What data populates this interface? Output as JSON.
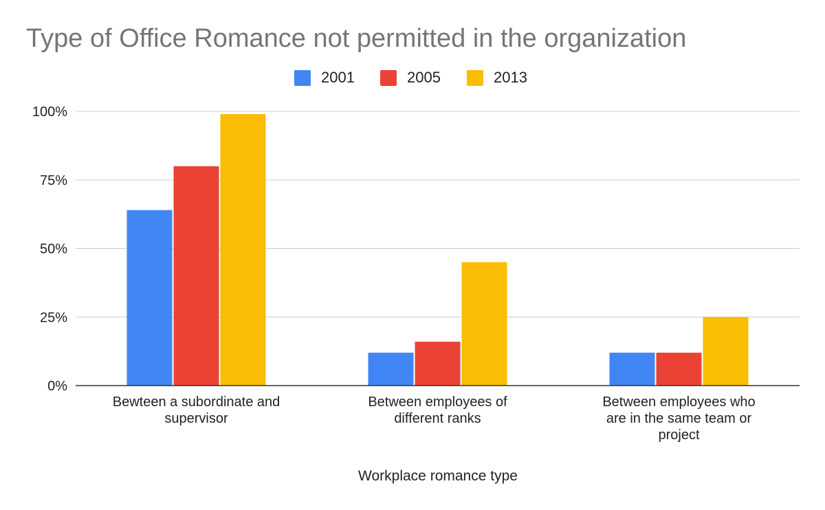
{
  "chart_data": {
    "type": "bar",
    "title": "Type of Office Romance not permitted  in the organization",
    "xlabel": "Workplace romance type",
    "ylabel": "",
    "categories": [
      [
        "Bewteen a subordinate and",
        "supervisor"
      ],
      [
        "Between employees of",
        "different ranks"
      ],
      [
        "Between employees who",
        "are in the same team or",
        "project"
      ]
    ],
    "series": [
      {
        "name": "2001",
        "color": "#4285f4",
        "values": [
          64,
          12,
          12
        ]
      },
      {
        "name": "2005",
        "color": "#ea4335",
        "values": [
          80,
          16,
          12
        ]
      },
      {
        "name": "2013",
        "color": "#fbbc04",
        "values": [
          99,
          45,
          25
        ]
      }
    ],
    "ylim": [
      0,
      100
    ],
    "yticks": [
      0,
      25,
      50,
      75,
      100
    ],
    "ytick_labels": [
      "0%",
      "25%",
      "50%",
      "75%",
      "100%"
    ],
    "legend_position": "top-center",
    "grid": true
  }
}
